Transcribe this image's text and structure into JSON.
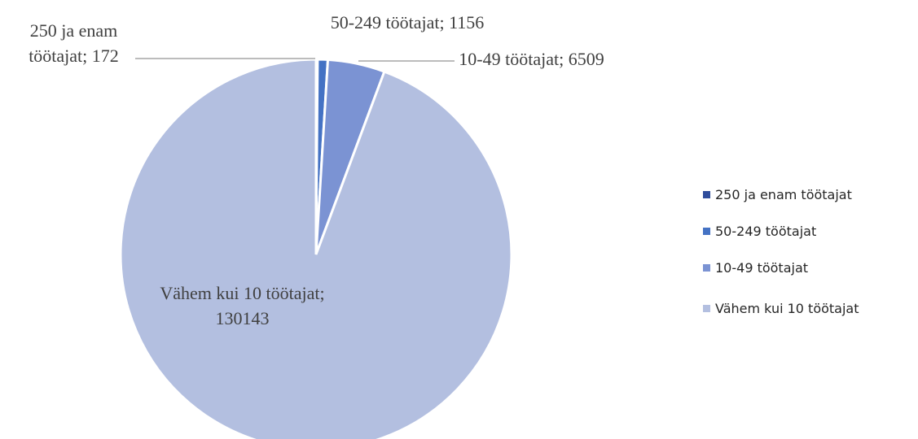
{
  "chart_data": {
    "type": "pie",
    "categories": [
      "250 ja enam töötajat",
      "50-249 töötajat",
      "10-49 töötajat",
      "Vähem kui 10 töötajat"
    ],
    "values": [
      172,
      1156,
      6509,
      130143
    ],
    "colors": [
      "#2f4d9c",
      "#4472c4",
      "#7b93d3",
      "#b3bfe0"
    ],
    "data_label_separator": "; ",
    "legend": "right"
  }
}
